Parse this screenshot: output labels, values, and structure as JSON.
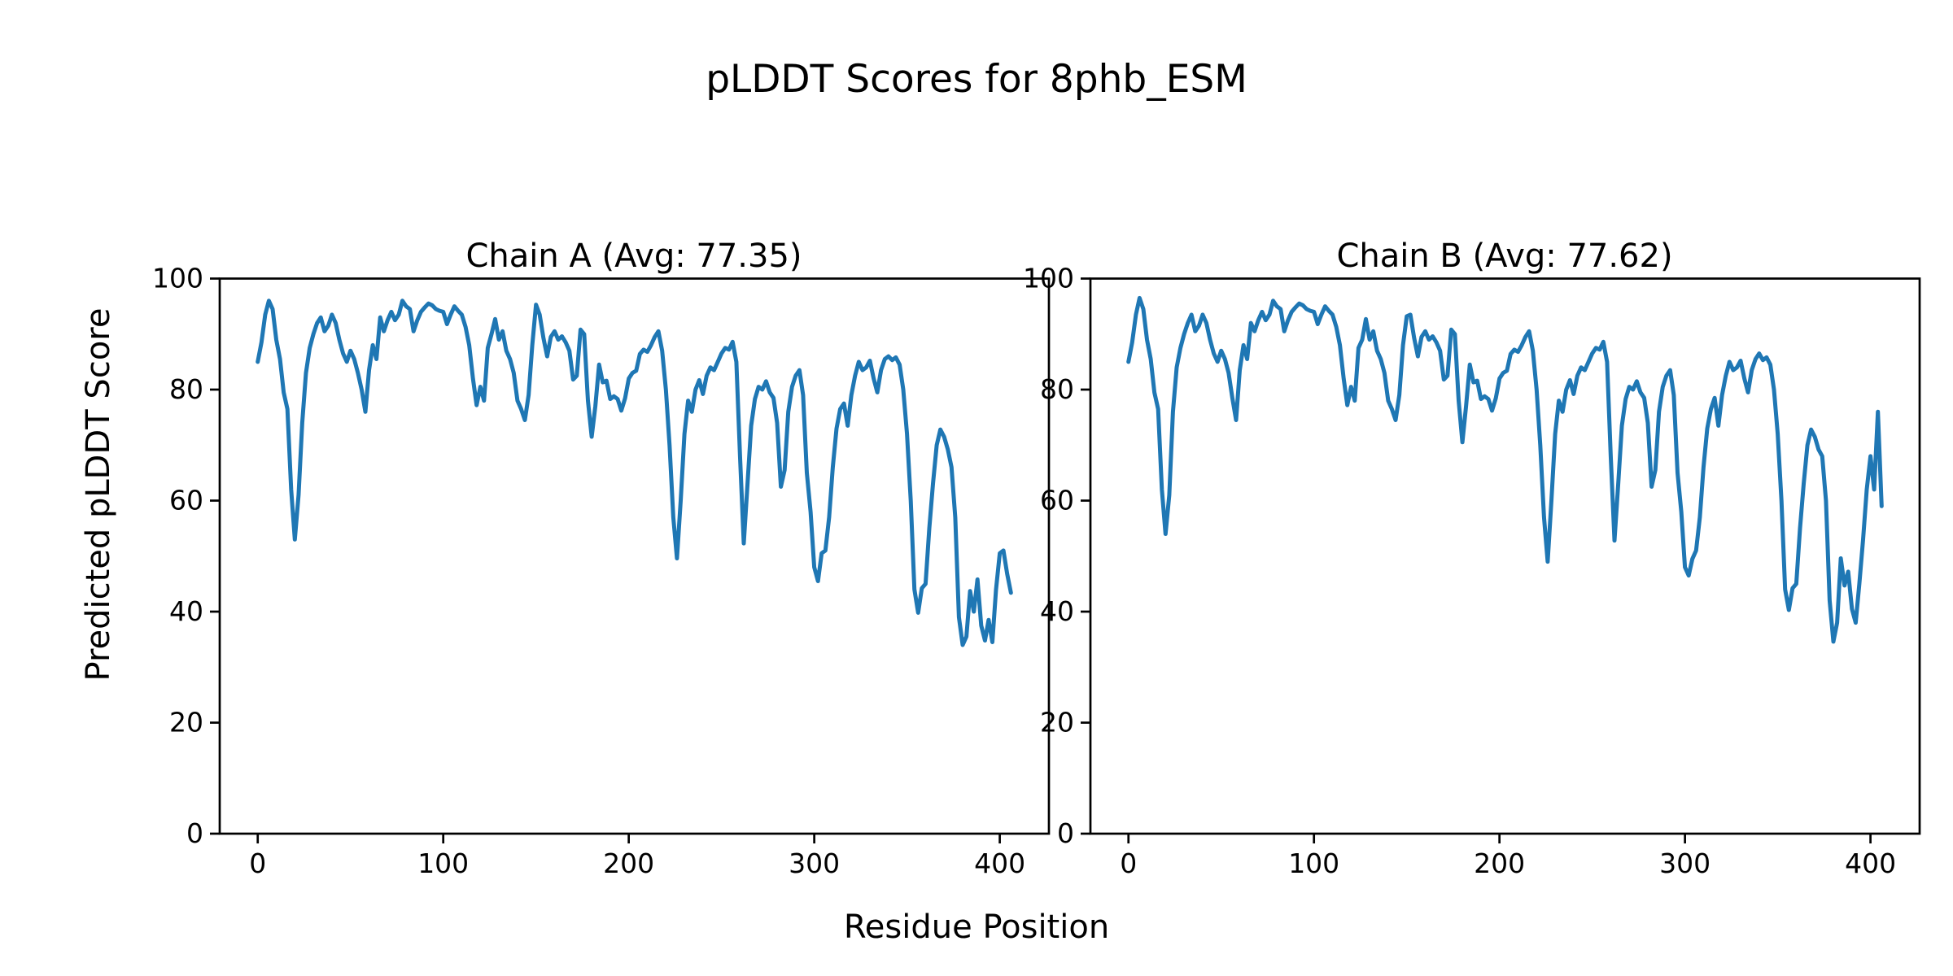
{
  "figure": {
    "title": "pLDDT Scores for 8phb_ESM",
    "background": "#ffffff",
    "text_color": "#000000"
  },
  "axes_shared": {
    "xlabel": "Residue Position",
    "ylabel": "Predicted pLDDT Score"
  },
  "chart_data": [
    {
      "type": "line",
      "title": "Chain A (Avg: 77.35)",
      "series_name": "Chain A",
      "avg_plddt": 77.35,
      "line_color": "#1f77b4",
      "xlim": [
        -20.5,
        426.5
      ],
      "ylim": [
        0,
        100
      ],
      "xticks": [
        0,
        100,
        200,
        300,
        400
      ],
      "yticks": [
        0,
        20,
        40,
        60,
        80,
        100
      ],
      "grid": false,
      "x_start": 0,
      "x_step": 2,
      "values": [
        85,
        88.5,
        93.5,
        96,
        94.5,
        89,
        85.5,
        79.5,
        76.5,
        62,
        53,
        61,
        74,
        83,
        87.5,
        90,
        92,
        93,
        90.5,
        91.5,
        93.5,
        92,
        89,
        86.5,
        85,
        87,
        85.5,
        83,
        80,
        76,
        83.5,
        88,
        85.5,
        93,
        90.5,
        92.5,
        94,
        92.5,
        93.5,
        96,
        95,
        94.5,
        90.5,
        92.5,
        94,
        94.8,
        95.5,
        95.2,
        94.5,
        94.2,
        94,
        91.8,
        93.5,
        95,
        94.2,
        93.5,
        91.3,
        88,
        82,
        77.2,
        80.5,
        78,
        87.5,
        90,
        92.7,
        89,
        90.5,
        87,
        85.5,
        83,
        78,
        76.5,
        74.5,
        79,
        88,
        95.3,
        93.5,
        89.3,
        86,
        89.5,
        90.5,
        89,
        89.6,
        88.5,
        87,
        81.8,
        82.5,
        90.8,
        90,
        78,
        71.5,
        77,
        84.5,
        81.3,
        81.6,
        78.3,
        78.8,
        78.3,
        76.2,
        78.4,
        82,
        83,
        83.4,
        86.4,
        87.2,
        86.8,
        88,
        89.5,
        90.5,
        87,
        80,
        70,
        57,
        49.6,
        60,
        72,
        78,
        76,
        80,
        81.7,
        79.2,
        82.5,
        84,
        83.5,
        85,
        86.5,
        87.5,
        87.2,
        88.6,
        85,
        68,
        52.3,
        63,
        73.5,
        78.3,
        80.5,
        80,
        81.5,
        79.5,
        78.5,
        74,
        62.5,
        65.5,
        76,
        80.5,
        82.5,
        83.5,
        79,
        65,
        58,
        48,
        45.5,
        50.5,
        51,
        57,
        66,
        73,
        76.5,
        77.5,
        73.5,
        79,
        82.5,
        85,
        83.5,
        84,
        85.2,
        82,
        79.5,
        83.5,
        85.5,
        86,
        85.3,
        85.8,
        84.5,
        80,
        72,
        60,
        44,
        39.8,
        44.2,
        45,
        55,
        63,
        70,
        72.8,
        71.5,
        69.2,
        66,
        57,
        39,
        34,
        35.5,
        43.7,
        40,
        45.8,
        37.5,
        34.8,
        38.5,
        34.5,
        44,
        50.5,
        51,
        46.8,
        43.4
      ]
    },
    {
      "type": "line",
      "title": "Chain B (Avg: 77.62)",
      "series_name": "Chain B",
      "avg_plddt": 77.62,
      "line_color": "#1f77b4",
      "xlim": [
        -20.5,
        426.5
      ],
      "ylim": [
        0,
        100
      ],
      "xticks": [
        0,
        100,
        200,
        300,
        400
      ],
      "yticks": [
        0,
        20,
        40,
        60,
        80,
        100
      ],
      "grid": false,
      "x_start": 0,
      "x_step": 2,
      "values": [
        85,
        88.5,
        93.5,
        96.5,
        94.5,
        89,
        85.5,
        79.5,
        76.5,
        62,
        54,
        61,
        76,
        84,
        87.5,
        90,
        92,
        93.5,
        90.5,
        91.5,
        93.5,
        92,
        89,
        86.5,
        85,
        87,
        85.5,
        83,
        78.5,
        74.5,
        83.5,
        88,
        85.5,
        92,
        90.5,
        92.5,
        94,
        92.5,
        93.5,
        96,
        95,
        94.5,
        90.5,
        92.5,
        94,
        94.8,
        95.5,
        95.2,
        94.5,
        94.2,
        94,
        91.8,
        93.5,
        95,
        94.2,
        93.5,
        91.3,
        88,
        82,
        77.2,
        80.5,
        78,
        87.5,
        89,
        92.7,
        89,
        90.5,
        87,
        85.5,
        83,
        78,
        76.5,
        74.5,
        79,
        88,
        93.2,
        93.5,
        89.3,
        86,
        89.5,
        90.5,
        89,
        89.6,
        88.5,
        87,
        81.8,
        82.5,
        90.8,
        90,
        78,
        70.5,
        77,
        84.5,
        81.3,
        81.6,
        78.3,
        78.8,
        78.3,
        76.2,
        78.4,
        82,
        83,
        83.4,
        86.4,
        87.2,
        86.8,
        88,
        89.5,
        90.5,
        87,
        80,
        70,
        57,
        49,
        60,
        72,
        78,
        76,
        80,
        81.7,
        79.2,
        82.5,
        84,
        83.5,
        85,
        86.5,
        87.5,
        87.2,
        88.6,
        85,
        68,
        52.8,
        63,
        73.5,
        78.3,
        80.5,
        80,
        81.5,
        79.5,
        78.5,
        74,
        62.5,
        65.5,
        76,
        80.5,
        82.5,
        83.5,
        79,
        65,
        58,
        48,
        46.5,
        49.5,
        51,
        57,
        66,
        73,
        76.5,
        78.5,
        73.5,
        79,
        82.5,
        85,
        83.5,
        84,
        85.2,
        82,
        79.5,
        83.5,
        85.5,
        86.5,
        85.3,
        85.8,
        84.5,
        80,
        72,
        60,
        44,
        40.3,
        44.2,
        45,
        55,
        63,
        70,
        72.8,
        71.5,
        69.2,
        68,
        60,
        42,
        34.6,
        38,
        49.6,
        44.7,
        47.2,
        40.5,
        38,
        45,
        53,
        62,
        68,
        62,
        76,
        59
      ]
    }
  ],
  "ticks": {
    "x_labels": [
      "0",
      "100",
      "200",
      "300",
      "400"
    ],
    "y_labels": [
      "0",
      "20",
      "40",
      "60",
      "80",
      "100"
    ]
  }
}
